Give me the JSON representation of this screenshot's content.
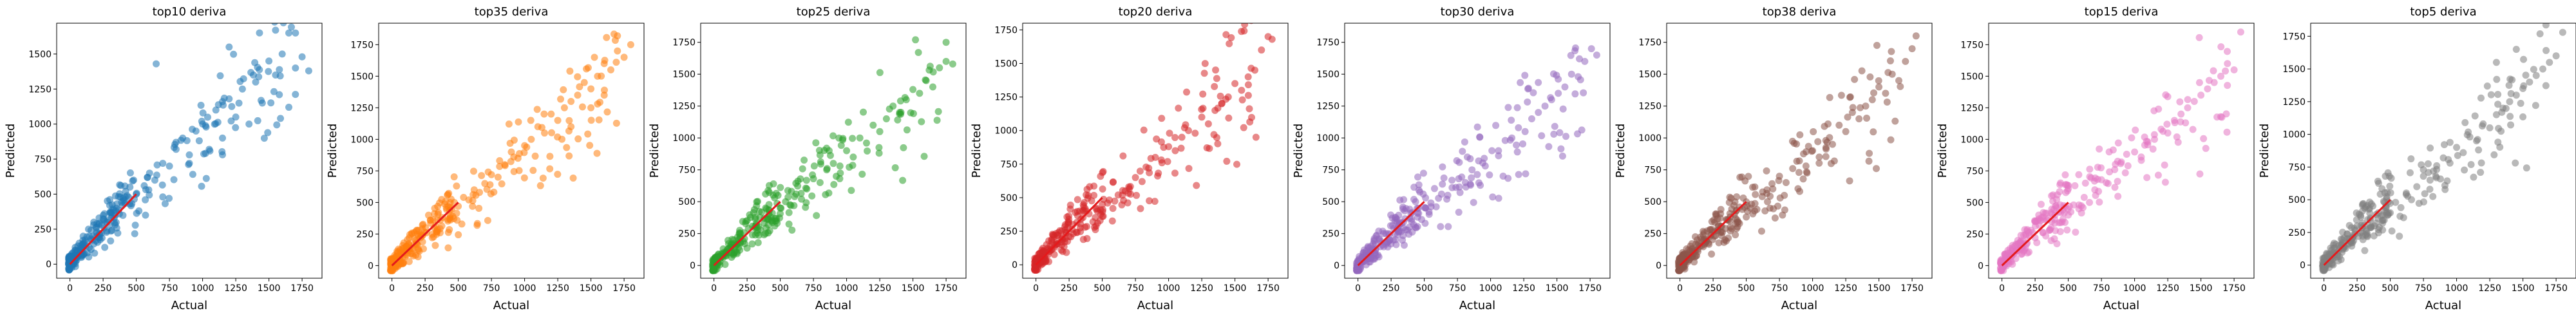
{
  "chart_data": [
    {
      "type": "scatter",
      "title": "top10 deriva",
      "xlabel": "Actual",
      "ylabel": "Predicted",
      "xlim": [
        -100,
        1900
      ],
      "ylim": [
        -100,
        1720
      ],
      "xticks": [
        0,
        250,
        500,
        750,
        1000,
        1250,
        1500,
        1750
      ],
      "yticks": [
        0,
        250,
        500,
        750,
        1000,
        1250,
        1500
      ],
      "color": "#1f77b4",
      "seed": 11,
      "x": [
        -10,
        0,
        5,
        10,
        20,
        30,
        40,
        55,
        70,
        90,
        100,
        120,
        140,
        160,
        180,
        200,
        220,
        240,
        260,
        280,
        300,
        320,
        350,
        380,
        400,
        420,
        450,
        480,
        500,
        520,
        560,
        600,
        640,
        700,
        750,
        800,
        850,
        900,
        950,
        1000,
        1050,
        1100,
        1150,
        1200,
        1250,
        1300,
        1350,
        1400,
        1450,
        1500,
        1550,
        1600,
        1650,
        1700,
        1750,
        1800,
        650,
        1200,
        1550,
        1650,
        1700,
        900,
        700
      ],
      "y": [
        10,
        30,
        60,
        20,
        80,
        50,
        120,
        60,
        150,
        100,
        200,
        130,
        250,
        180,
        300,
        220,
        330,
        280,
        360,
        300,
        420,
        350,
        400,
        480,
        450,
        520,
        430,
        600,
        500,
        380,
        560,
        650,
        600,
        720,
        700,
        820,
        900,
        780,
        950,
        1000,
        820,
        1100,
        900,
        1180,
        1050,
        1250,
        1000,
        1300,
        1150,
        1450,
        1350,
        1500,
        1650,
        1400,
        1480,
        1380,
        1430,
        1550,
        1670,
        1120,
        1650,
        720,
        480
      ]
    },
    {
      "type": "scatter",
      "title": "top35 deriva",
      "xlabel": "Actual",
      "ylabel": "Predicted",
      "xlim": [
        -100,
        1900
      ],
      "ylim": [
        -100,
        1920
      ],
      "xticks": [
        0,
        250,
        500,
        750,
        1000,
        1250,
        1500,
        1750
      ],
      "yticks": [
        0,
        250,
        500,
        750,
        1000,
        1250,
        1500,
        1750
      ],
      "color": "#ff7f0e",
      "seed": 22,
      "x": [
        -10,
        0,
        10,
        20,
        30,
        50,
        70,
        90,
        110,
        130,
        150,
        180,
        200,
        230,
        260,
        290,
        320,
        350,
        380,
        410,
        440,
        470,
        500,
        540,
        580,
        620,
        660,
        700,
        750,
        800,
        850,
        900,
        950,
        1000,
        1050,
        1100,
        1150,
        1200,
        1250,
        1300,
        1350,
        1400,
        1450,
        1500,
        1550,
        1600,
        1650,
        1700,
        1750,
        1800,
        1700,
        1600,
        1500,
        1550,
        1350
      ],
      "y": [
        20,
        40,
        10,
        80,
        60,
        130,
        100,
        180,
        150,
        220,
        250,
        200,
        280,
        320,
        260,
        360,
        300,
        420,
        380,
        460,
        400,
        500,
        470,
        540,
        520,
        600,
        580,
        650,
        720,
        700,
        800,
        900,
        850,
        950,
        1000,
        1100,
        1050,
        1200,
        1150,
        1250,
        1300,
        1350,
        1450,
        1400,
        1500,
        1600,
        1550,
        1700,
        1650,
        1750,
        1820,
        1350,
        1250,
        1280,
        1100
      ]
    },
    {
      "type": "scatter",
      "title": "top25 deriva",
      "xlabel": "Actual",
      "ylabel": "Predicted",
      "xlim": [
        -100,
        1900
      ],
      "ylim": [
        -100,
        1900
      ],
      "xticks": [
        0,
        250,
        500,
        750,
        1000,
        1250,
        1500,
        1750
      ],
      "yticks": [
        0,
        250,
        500,
        750,
        1000,
        1250,
        1500,
        1750
      ],
      "color": "#2ca02c",
      "seed": 33,
      "x": [
        -10,
        0,
        10,
        20,
        35,
        50,
        70,
        90,
        110,
        130,
        150,
        170,
        200,
        230,
        260,
        290,
        320,
        350,
        380,
        410,
        440,
        470,
        500,
        540,
        580,
        620,
        660,
        700,
        750,
        800,
        850,
        900,
        950,
        1000,
        1050,
        1100,
        1150,
        1200,
        1250,
        1300,
        1350,
        1400,
        1450,
        1500,
        1550,
        1600,
        1650,
        1700,
        1750,
        1800,
        1750
      ],
      "y": [
        10,
        30,
        60,
        20,
        90,
        60,
        130,
        100,
        170,
        140,
        200,
        160,
        250,
        210,
        290,
        240,
        330,
        280,
        370,
        320,
        410,
        350,
        450,
        500,
        470,
        560,
        520,
        600,
        680,
        650,
        750,
        800,
        780,
        900,
        850,
        1000,
        960,
        1100,
        1050,
        1150,
        1250,
        1200,
        1300,
        1380,
        1350,
        1450,
        1400,
        1550,
        1600,
        1580,
        1750
      ]
    },
    {
      "type": "scatter",
      "title": "top20 deriva",
      "xlabel": "Actual",
      "ylabel": "Predicted",
      "xlim": [
        -100,
        1900
      ],
      "ylim": [
        -100,
        1800
      ],
      "xticks": [
        0,
        250,
        500,
        750,
        1000,
        1250,
        1500,
        1750
      ],
      "yticks": [
        0,
        250,
        500,
        750,
        1000,
        1250,
        1500,
        1750
      ],
      "color": "#d62728",
      "seed": 44,
      "x": [
        -10,
        0,
        10,
        20,
        30,
        45,
        60,
        80,
        100,
        120,
        140,
        160,
        190,
        220,
        250,
        280,
        310,
        340,
        370,
        400,
        430,
        460,
        500,
        540,
        580,
        620,
        660,
        700,
        750,
        800,
        850,
        900,
        950,
        1000,
        1050,
        1100,
        1150,
        1200,
        1250,
        1300,
        1350,
        1400,
        1450,
        1500,
        1550,
        1600,
        1650,
        1700,
        1750,
        1780
      ],
      "y": [
        20,
        50,
        10,
        80,
        40,
        110,
        70,
        150,
        100,
        190,
        130,
        220,
        170,
        260,
        210,
        300,
        240,
        340,
        280,
        380,
        320,
        420,
        360,
        460,
        420,
        520,
        480,
        580,
        650,
        620,
        720,
        800,
        760,
        880,
        850,
        950,
        1000,
        980,
        1100,
        1050,
        1150,
        1200,
        1250,
        1350,
        1300,
        1400,
        1450,
        1600,
        1700,
        1680
      ]
    },
    {
      "type": "scatter",
      "title": "top30 deriva",
      "xlabel": "Actual",
      "ylabel": "Predicted",
      "xlim": [
        -100,
        1900
      ],
      "ylim": [
        -100,
        1900
      ],
      "xticks": [
        0,
        250,
        500,
        750,
        1000,
        1250,
        1500,
        1750
      ],
      "yticks": [
        0,
        250,
        500,
        750,
        1000,
        1250,
        1500,
        1750
      ],
      "color": "#9467bd",
      "seed": 55,
      "x": [
        -10,
        0,
        10,
        25,
        40,
        55,
        75,
        95,
        115,
        135,
        160,
        185,
        210,
        240,
        270,
        300,
        330,
        360,
        390,
        420,
        450,
        480,
        510,
        550,
        590,
        630,
        670,
        710,
        760,
        810,
        860,
        910,
        960,
        1010,
        1060,
        1110,
        1160,
        1210,
        1260,
        1310,
        1360,
        1410,
        1460,
        1510,
        1560,
        1610,
        1660,
        1710,
        1760,
        1800
      ],
      "y": [
        20,
        40,
        70,
        30,
        100,
        60,
        140,
        100,
        170,
        130,
        210,
        160,
        250,
        200,
        290,
        240,
        330,
        280,
        370,
        320,
        410,
        360,
        450,
        490,
        460,
        560,
        520,
        610,
        680,
        650,
        750,
        820,
        780,
        900,
        860,
        980,
        1000,
        1080,
        1050,
        1150,
        1200,
        1250,
        1300,
        1350,
        1400,
        1500,
        1480,
        1600,
        1700,
        1650
      ]
    },
    {
      "type": "scatter",
      "title": "top38 deriva",
      "xlabel": "Actual",
      "ylabel": "Predicted",
      "xlim": [
        -100,
        1900
      ],
      "ylim": [
        -100,
        1900
      ],
      "xticks": [
        0,
        250,
        500,
        750,
        1000,
        1250,
        1500,
        1750
      ],
      "yticks": [
        0,
        250,
        500,
        750,
        1000,
        1250,
        1500,
        1750
      ],
      "color": "#8c564b",
      "seed": 66,
      "x": [
        -10,
        0,
        10,
        20,
        35,
        50,
        70,
        90,
        110,
        130,
        150,
        175,
        200,
        230,
        260,
        290,
        320,
        350,
        380,
        410,
        440,
        470,
        500,
        540,
        580,
        620,
        660,
        700,
        750,
        800,
        850,
        900,
        950,
        1000,
        1050,
        1100,
        1150,
        1200,
        1250,
        1300,
        1350,
        1400,
        1450,
        1500,
        1550,
        1600,
        1650,
        1700,
        1750,
        1780
      ],
      "y": [
        30,
        60,
        20,
        100,
        50,
        130,
        80,
        170,
        120,
        200,
        150,
        240,
        190,
        280,
        230,
        320,
        260,
        360,
        300,
        400,
        340,
        440,
        380,
        480,
        440,
        540,
        500,
        600,
        700,
        650,
        760,
        820,
        780,
        900,
        850,
        980,
        950,
        1100,
        1050,
        1200,
        1150,
        1250,
        1300,
        1400,
        1350,
        1500,
        1450,
        1600,
        1700,
        1800
      ]
    },
    {
      "type": "scatter",
      "title": "top15 deriva",
      "xlabel": "Actual",
      "ylabel": "Predicted",
      "xlim": [
        -100,
        1900
      ],
      "ylim": [
        -100,
        1920
      ],
      "xticks": [
        0,
        250,
        500,
        750,
        1000,
        1250,
        1500,
        1750
      ],
      "yticks": [
        0,
        250,
        500,
        750,
        1000,
        1250,
        1500,
        1750
      ],
      "color": "#e377c2",
      "seed": 77,
      "x": [
        -10,
        0,
        10,
        20,
        30,
        45,
        60,
        80,
        100,
        120,
        140,
        165,
        190,
        220,
        250,
        280,
        310,
        340,
        370,
        400,
        430,
        460,
        500,
        540,
        580,
        620,
        660,
        700,
        750,
        800,
        850,
        900,
        950,
        1000,
        1050,
        1100,
        1150,
        1200,
        1250,
        1300,
        1350,
        1400,
        1450,
        1500,
        1550,
        1600,
        1650,
        1700,
        1750,
        1800
      ],
      "y": [
        20,
        50,
        10,
        90,
        50,
        120,
        80,
        160,
        110,
        200,
        140,
        240,
        180,
        280,
        220,
        320,
        260,
        360,
        300,
        400,
        340,
        440,
        400,
        480,
        450,
        540,
        500,
        600,
        680,
        650,
        760,
        820,
        790,
        900,
        860,
        980,
        1000,
        1080,
        1050,
        1150,
        1200,
        1250,
        1300,
        1350,
        1400,
        1450,
        1500,
        1600,
        1550,
        1850
      ]
    },
    {
      "type": "scatter",
      "title": "top5 deriva",
      "xlabel": "Actual",
      "ylabel": "Predicted",
      "xlim": [
        -100,
        1900
      ],
      "ylim": [
        -100,
        1850
      ],
      "xticks": [
        0,
        250,
        500,
        750,
        1000,
        1250,
        1500,
        1750
      ],
      "yticks": [
        0,
        250,
        500,
        750,
        1000,
        1250,
        1500,
        1750
      ],
      "color": "#7f7f7f",
      "seed": 88,
      "x": [
        -10,
        0,
        10,
        20,
        35,
        50,
        70,
        90,
        110,
        130,
        150,
        175,
        200,
        230,
        260,
        290,
        320,
        350,
        380,
        410,
        440,
        470,
        500,
        540,
        580,
        620,
        660,
        700,
        750,
        800,
        850,
        900,
        950,
        1000,
        1050,
        1100,
        1150,
        1200,
        1250,
        1300,
        1350,
        1400,
        1450,
        1500,
        1550,
        1600,
        1650,
        1700,
        1750,
        1800,
        1450,
        1300
      ],
      "y": [
        20,
        50,
        10,
        90,
        40,
        130,
        70,
        160,
        110,
        200,
        140,
        240,
        180,
        280,
        220,
        320,
        260,
        360,
        300,
        400,
        340,
        440,
        400,
        480,
        440,
        540,
        500,
        600,
        680,
        650,
        760,
        820,
        780,
        900,
        860,
        980,
        950,
        1080,
        1050,
        1150,
        1200,
        1250,
        1300,
        1350,
        1400,
        1450,
        1500,
        1550,
        1600,
        1780,
        1650,
        1550
      ]
    }
  ]
}
